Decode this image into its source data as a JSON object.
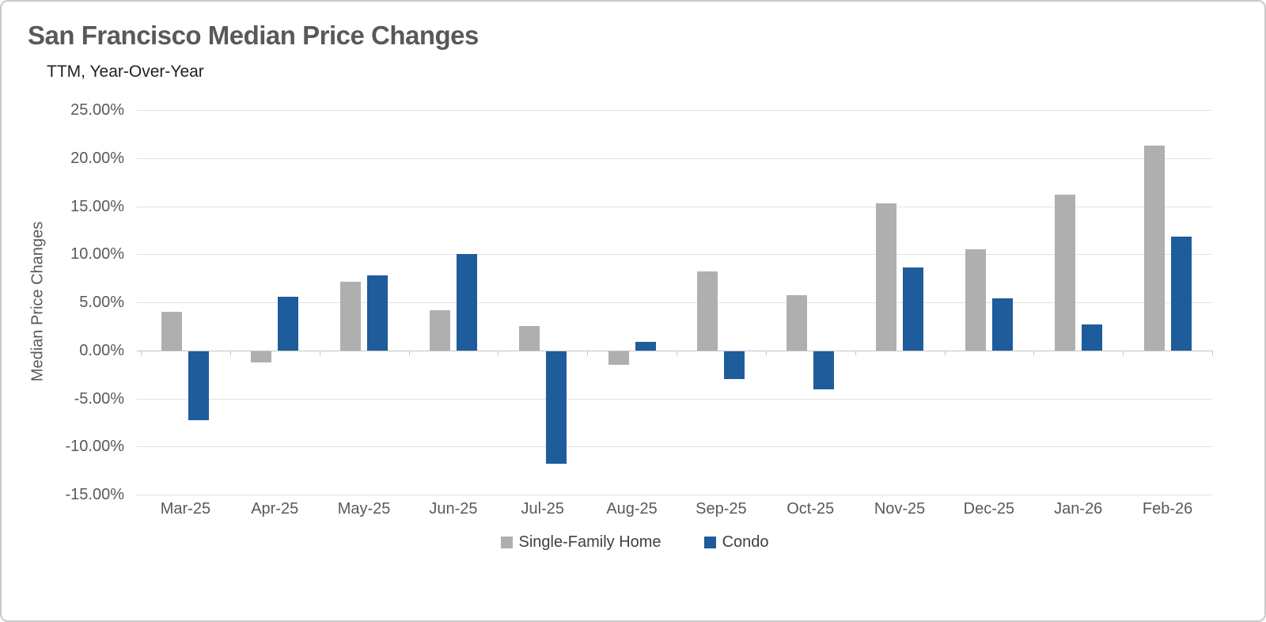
{
  "header": {
    "title": "San Francisco Median Price Changes",
    "subtitle": "TTM, Year-Over-Year"
  },
  "chart_data": {
    "type": "bar",
    "title": "San Francisco Median Price Changes",
    "subtitle": "TTM, Year-Over-Year",
    "xlabel": "",
    "ylabel": "Median Price Changes",
    "ylim": [
      -15,
      25
    ],
    "ytick_step": 5,
    "ytick_labels": [
      "25.00%",
      "20.00%",
      "15.00%",
      "10.00%",
      "5.00%",
      "0.00%",
      "-5.00%",
      "-10.00%",
      "-15.00%"
    ],
    "grid": true,
    "legend_position": "bottom-center",
    "categories": [
      "Mar-25",
      "Apr-25",
      "May-25",
      "Jun-25",
      "Jul-25",
      "Aug-25",
      "Sep-25",
      "Oct-25",
      "Nov-25",
      "Dec-25",
      "Jan-26",
      "Feb-26"
    ],
    "series": [
      {
        "name": "Single-Family Home",
        "color": "#afafaf",
        "values": [
          4.0,
          -1.2,
          7.1,
          4.2,
          2.5,
          -1.4,
          8.2,
          5.7,
          15.3,
          10.5,
          16.2,
          21.3
        ]
      },
      {
        "name": "Condo",
        "color": "#1e5c9b",
        "values": [
          -7.2,
          5.6,
          7.8,
          10.0,
          -11.7,
          0.9,
          -2.9,
          -4.0,
          8.6,
          5.4,
          2.7,
          11.8
        ]
      }
    ]
  },
  "colors": {
    "gridline": "#e2e2e2",
    "axis_line": "#c4c4c4",
    "title_text": "#595959",
    "axis_text": "#595959",
    "legend_text": "#404040"
  }
}
